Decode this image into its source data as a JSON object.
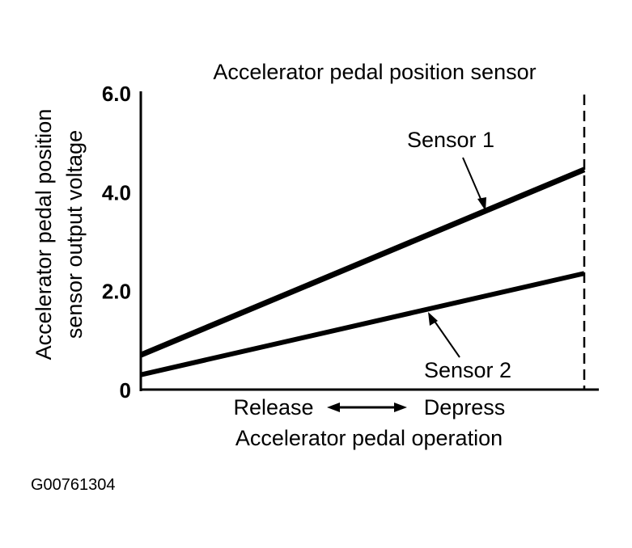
{
  "chart_data": {
    "type": "line",
    "title": "Accelerator pedal position sensor",
    "ylabel_lines": [
      "Accelerator pedal position",
      "sensor output voltage"
    ],
    "xlabel": "Accelerator pedal operation",
    "x_ends": {
      "left": "Release",
      "right": "Depress"
    },
    "x": [
      0,
      1
    ],
    "ylim": [
      0,
      6
    ],
    "yticks": [
      {
        "value": 0,
        "label": "0"
      },
      {
        "value": 2,
        "label": "2.0"
      },
      {
        "value": 4,
        "label": "4.0"
      },
      {
        "value": 6,
        "label": "6.0"
      }
    ],
    "series": [
      {
        "name": "Sensor 1",
        "values": [
          0.7,
          4.45
        ]
      },
      {
        "name": "Sensor 2",
        "values": [
          0.3,
          2.35
        ]
      }
    ],
    "full_depress_marker": "dashed vertical line",
    "grid": false,
    "color": "#000000"
  },
  "figure_id": "G00761304"
}
